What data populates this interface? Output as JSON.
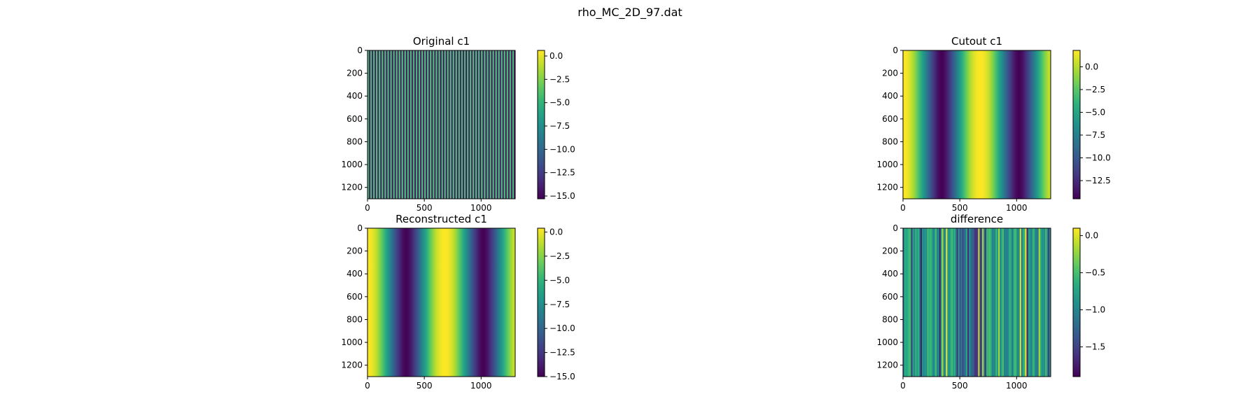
{
  "figure": {
    "suptitle": "rho_MC_2D_97.dat"
  },
  "colormap": [
    "#440154",
    "#472d7b",
    "#3b528b",
    "#2c728e",
    "#21918c",
    "#28ae80",
    "#5ec962",
    "#addc30",
    "#fde725"
  ],
  "chart_data": [
    {
      "type": "heatmap",
      "title": "Original c1",
      "pattern": "fine vertical stripes, alternating min/max across columns",
      "xlim": [
        0,
        1300
      ],
      "ylim": [
        1300,
        0
      ],
      "xticks": [
        0,
        500,
        1000
      ],
      "yticks": [
        0,
        200,
        400,
        600,
        800,
        1000,
        1200
      ],
      "colorbar": {
        "range": [
          -15.3,
          0.6
        ],
        "ticks": [
          "0.0",
          "−2.5",
          "−5.0",
          "−7.5",
          "−10.0",
          "−12.5",
          "−15.0"
        ],
        "tick_values": [
          0,
          -2.5,
          -5,
          -7.5,
          -10,
          -12.5,
          -15
        ]
      }
    },
    {
      "type": "heatmap",
      "title": "Cutout c1",
      "pattern": "smooth vertical bands: high at x≈0, x≈680, x≈1300; low at x≈330 and x≈1010",
      "xlim": [
        0,
        1300
      ],
      "ylim": [
        1300,
        0
      ],
      "xticks": [
        0,
        500,
        1000
      ],
      "yticks": [
        0,
        200,
        400,
        600,
        800,
        1000,
        1200
      ],
      "colorbar": {
        "range": [
          -14.5,
          1.8
        ],
        "ticks": [
          "0.0",
          "−2.5",
          "−5.0",
          "−7.5",
          "−10.0",
          "−12.5"
        ],
        "tick_values": [
          0,
          -2.5,
          -5,
          -7.5,
          -10,
          -12.5
        ]
      }
    },
    {
      "type": "heatmap",
      "title": "Reconstructed c1",
      "pattern": "smooth vertical bands: high at x≈0, x≈680, x≈1300; low at x≈330 and x≈1010",
      "xlim": [
        0,
        1300
      ],
      "ylim": [
        1300,
        0
      ],
      "xticks": [
        0,
        500,
        1000
      ],
      "yticks": [
        0,
        200,
        400,
        600,
        800,
        1000,
        1200
      ],
      "colorbar": {
        "range": [
          -15.0,
          0.4
        ],
        "ticks": [
          "0.0",
          "−2.5",
          "−5.0",
          "−7.5",
          "−10.0",
          "−12.5",
          "−15.0"
        ],
        "tick_values": [
          0,
          -2.5,
          -5,
          -7.5,
          -10,
          -12.5,
          -15
        ]
      }
    },
    {
      "type": "heatmap",
      "title": "difference",
      "pattern": "noisy vertical streaks, mostly mid-high values",
      "xlim": [
        0,
        1300
      ],
      "ylim": [
        1300,
        0
      ],
      "xticks": [
        0,
        500,
        1000
      ],
      "yticks": [
        0,
        200,
        400,
        600,
        800,
        1000,
        1200
      ],
      "colorbar": {
        "range": [
          -1.9,
          0.1
        ],
        "ticks": [
          "0.0",
          "−0.5",
          "−1.0",
          "−1.5"
        ],
        "tick_values": [
          0,
          -0.5,
          -1,
          -1.5
        ]
      }
    }
  ]
}
